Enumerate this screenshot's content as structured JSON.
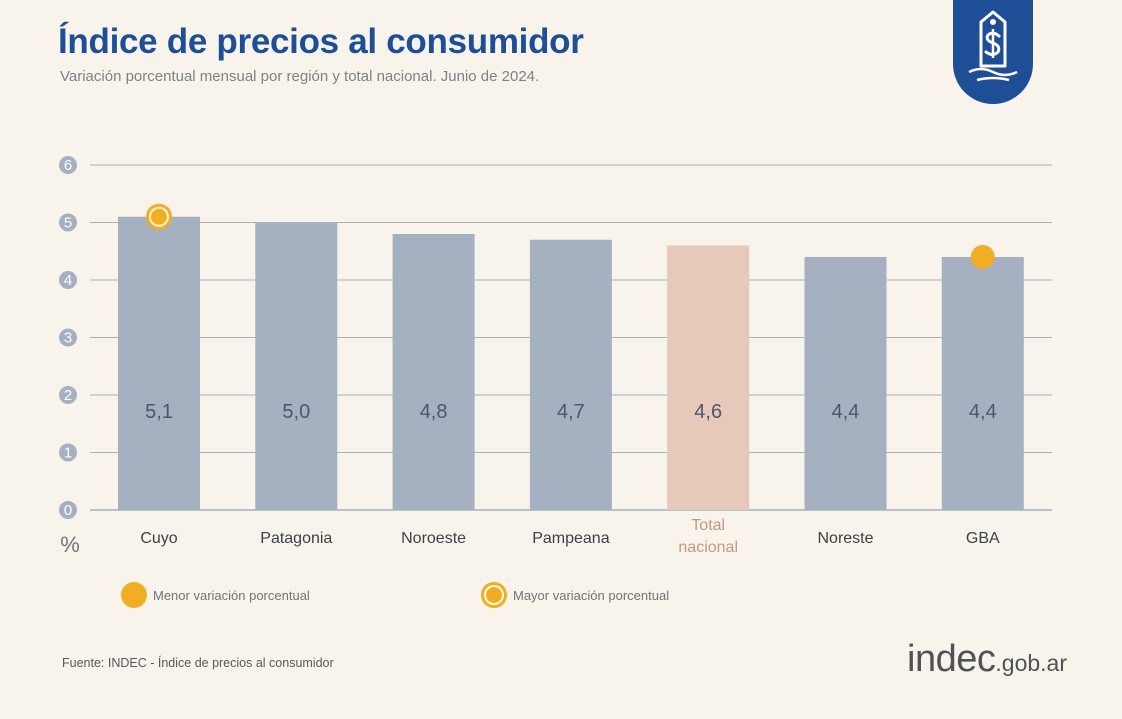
{
  "header": {
    "title": "Índice de precios al consumidor",
    "subtitle": "Variación porcentual mensual por región y total nacional. Junio de 2024."
  },
  "badge": {
    "icon": "price-tag-dollar-icon",
    "color": "#1e4e96"
  },
  "chart_data": {
    "type": "bar",
    "title": "Índice de precios al consumidor",
    "subtitle": "Variación porcentual mensual por región y total nacional. Junio de 2024.",
    "xlabel": "",
    "ylabel": "%",
    "ylim": [
      0,
      6
    ],
    "yticks": [
      0,
      1,
      2,
      3,
      4,
      5,
      6
    ],
    "grid": true,
    "categories": [
      "Cuyo",
      "Patagonia",
      "Noroeste",
      "Pampeana",
      "Total nacional",
      "Noreste",
      "GBA"
    ],
    "values": [
      5.1,
      5.0,
      4.8,
      4.7,
      4.6,
      4.4,
      4.4
    ],
    "value_labels": [
      "5,1",
      "5,0",
      "4,8",
      "4,7",
      "4,6",
      "4,4",
      "4,4"
    ],
    "highlight_index": 4,
    "colors": {
      "bar": "#a5b0c0",
      "highlight": "#e6c9b8",
      "marker": "#f0ae24",
      "axis": "#a5b0c0",
      "value_text": "#4a5770",
      "highlight_label": "#c29a80"
    },
    "markers": [
      {
        "category": "Cuyo",
        "type": "max"
      },
      {
        "category": "GBA",
        "type": "min"
      }
    ],
    "legend": [
      {
        "label": "Menor variación porcentual",
        "type": "min"
      },
      {
        "label": "Mayor variación porcentual",
        "type": "max"
      }
    ],
    "legend_placement": "bottom"
  },
  "footer": {
    "source": "Fuente: INDEC - Índice de precios al consumidor",
    "brand": "indec",
    "brand_domain": ".gob.ar"
  }
}
